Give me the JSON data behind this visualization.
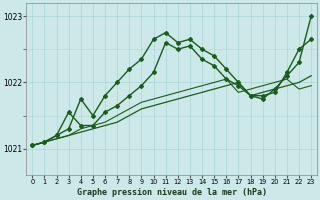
{
  "xlabel": "Graphe pression niveau de la mer (hPa)",
  "ylim": [
    1020.6,
    1023.2
  ],
  "xlim": [
    -0.5,
    23.5
  ],
  "yticks": [
    1021,
    1022,
    1023
  ],
  "xticks": [
    0,
    1,
    2,
    3,
    4,
    5,
    6,
    7,
    8,
    9,
    10,
    11,
    12,
    13,
    14,
    15,
    16,
    17,
    18,
    19,
    20,
    21,
    22,
    23
  ],
  "bg_color": "#cce8e8",
  "line_color": "#1a5c1a",
  "grid_color": "#b0d8d8",
  "lines": [
    {
      "x": [
        0,
        1,
        2,
        3,
        4,
        5,
        6,
        7,
        8,
        9,
        10,
        11,
        12,
        13,
        14,
        15,
        16,
        17,
        18,
        19,
        20,
        21,
        22,
        23
      ],
      "y": [
        1021.05,
        1021.1,
        1021.2,
        1021.55,
        1021.35,
        1021.35,
        1021.55,
        1021.65,
        1021.8,
        1021.95,
        1022.15,
        1022.6,
        1022.5,
        1022.55,
        1022.35,
        1022.25,
        1022.05,
        1021.95,
        1021.8,
        1021.75,
        1021.9,
        1022.1,
        1022.3,
        1023.0
      ],
      "marker": true,
      "lw": 1.0
    },
    {
      "x": [
        0,
        1,
        2,
        3,
        4,
        5,
        6,
        7,
        8,
        9,
        10,
        11,
        12,
        13,
        14,
        15,
        16,
        17,
        18,
        19,
        20,
        21,
        22,
        23
      ],
      "y": [
        1021.05,
        1021.1,
        1021.2,
        1021.3,
        1021.75,
        1021.5,
        1021.8,
        1022.0,
        1022.2,
        1022.35,
        1022.65,
        1022.75,
        1022.6,
        1022.65,
        1022.5,
        1022.4,
        1022.2,
        1022.0,
        1021.8,
        1021.8,
        1021.85,
        1022.15,
        1022.5,
        1022.65
      ],
      "marker": true,
      "lw": 1.0
    },
    {
      "x": [
        0,
        1,
        2,
        3,
        4,
        5,
        6,
        7,
        8,
        9,
        10,
        11,
        12,
        13,
        14,
        15,
        16,
        17,
        18,
        19,
        20,
        21,
        22,
        23
      ],
      "y": [
        1021.05,
        1021.1,
        1021.15,
        1021.2,
        1021.25,
        1021.3,
        1021.35,
        1021.4,
        1021.5,
        1021.6,
        1021.65,
        1021.7,
        1021.75,
        1021.8,
        1021.85,
        1021.9,
        1021.95,
        1022.0,
        1021.8,
        1021.85,
        1021.9,
        1021.95,
        1022.0,
        1022.1
      ],
      "marker": false,
      "lw": 0.9
    },
    {
      "x": [
        0,
        1,
        2,
        3,
        4,
        5,
        6,
        7,
        8,
        9,
        10,
        11,
        12,
        13,
        14,
        15,
        16,
        17,
        18,
        19,
        20,
        21,
        22,
        23
      ],
      "y": [
        1021.05,
        1021.1,
        1021.15,
        1021.2,
        1021.3,
        1021.35,
        1021.4,
        1021.5,
        1021.6,
        1021.7,
        1021.75,
        1021.8,
        1021.85,
        1021.9,
        1021.95,
        1022.0,
        1022.05,
        1021.85,
        1021.9,
        1021.95,
        1022.0,
        1022.05,
        1021.9,
        1021.95
      ],
      "marker": false,
      "lw": 0.8
    }
  ]
}
